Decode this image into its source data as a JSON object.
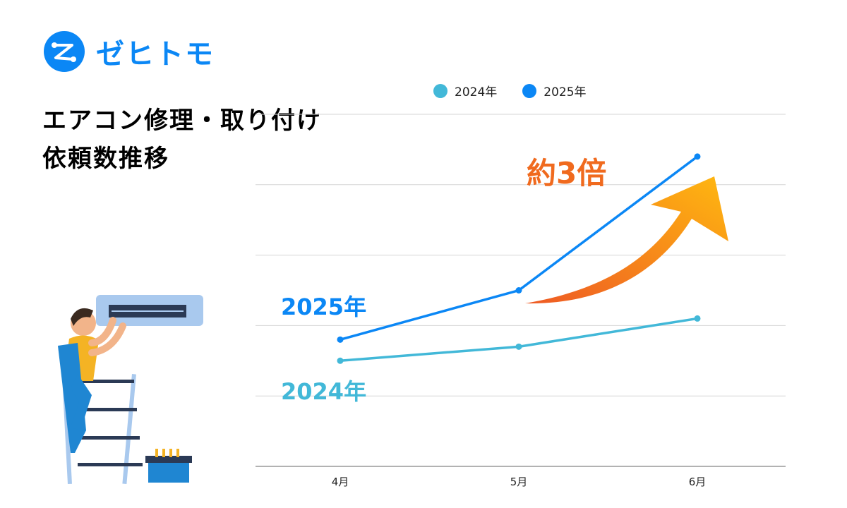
{
  "logo": {
    "text": "ゼヒトモ",
    "color": "#0b87f5"
  },
  "title": {
    "line1": "エアコン修理・取り付け",
    "line2": "依頼数推移"
  },
  "annotation": {
    "text": "約3倍",
    "color": "#f06a1e"
  },
  "chart_data": {
    "type": "line",
    "title": "エアコン修理・取り付け 依頼数推移",
    "categories": [
      "4月",
      "5月",
      "6月"
    ],
    "ylim": [
      0,
      5
    ],
    "y_tick_labels_shown": false,
    "grid": true,
    "legend": "top",
    "series": [
      {
        "name": "2024年",
        "color": "#42b8d8",
        "values": [
          1.5,
          1.7,
          2.1
        ],
        "label": "2024年"
      },
      {
        "name": "2025年",
        "color": "#0b87f5",
        "values": [
          1.8,
          2.5,
          4.4
        ],
        "label": "2025年"
      }
    ]
  }
}
